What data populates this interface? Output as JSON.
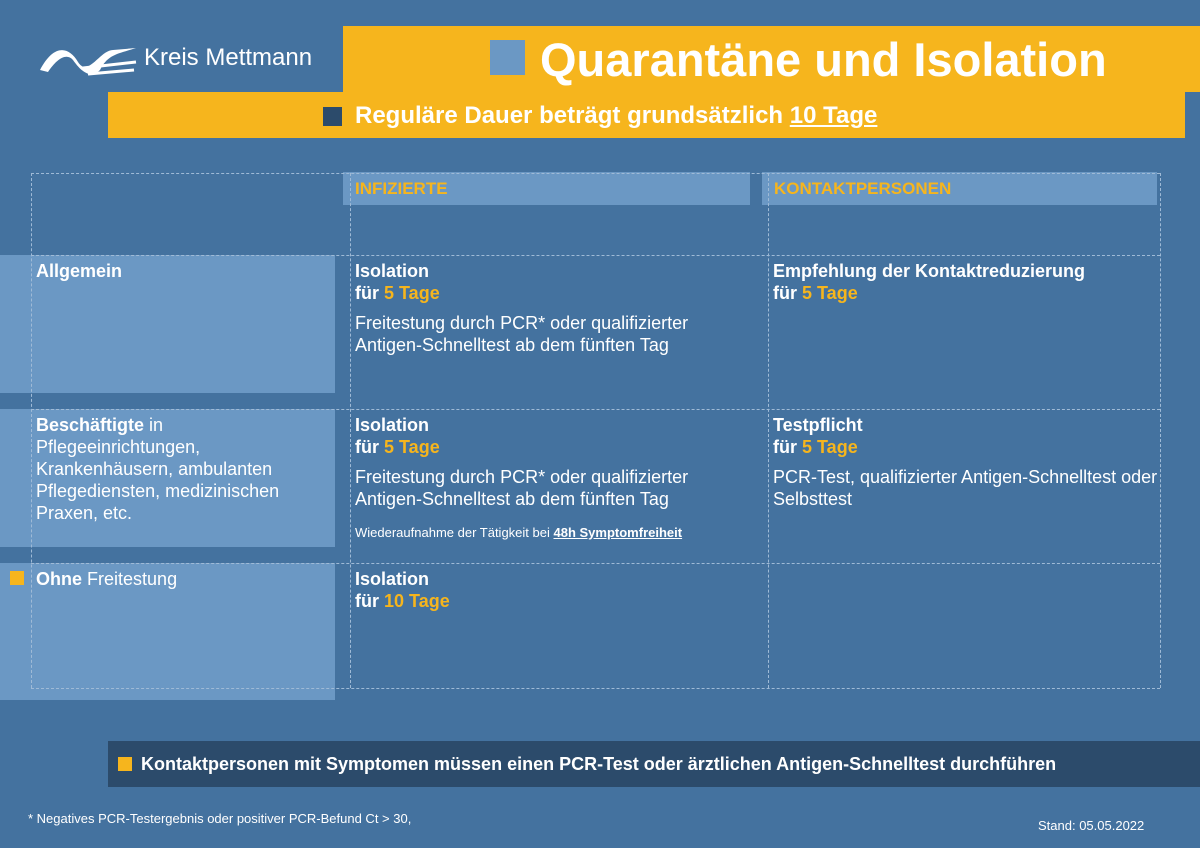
{
  "header": {
    "logo": "Kreis Mettmann",
    "title": "Quarantäne und Isolation",
    "subtitle": "Reguläre Dauer beträgt grundsätzlich",
    "subtitle_highlight": "10 Tage"
  },
  "table": {
    "columns": [
      "INFIZIERTE",
      "KONTAKTPERSONEN"
    ],
    "rows": [
      {
        "label_bold": "Allgemein",
        "infected": {
          "heading": "Isolation",
          "for": "für",
          "duration": "5 Tage",
          "text": "Freitestung durch PCR* oder qualifizierter Antigen-Schnelltest ab dem fünften Tag"
        },
        "contacts": {
          "heading": "Empfehlung der Kontaktreduzierung",
          "for": "für",
          "duration": "5 Tage"
        }
      },
      {
        "label_bold": "Beschäftigte",
        "label_rest": "in Pflegeeinrichtungen, Krankenhäusern, ambulanten Pflegediensten, medizinischen Praxen, etc.",
        "infected": {
          "heading": "Isolation",
          "for": "für",
          "duration": "5 Tage",
          "text": "Freitestung durch PCR* oder qualifizierter Antigen-Schnelltest ab dem fünften Tag",
          "extra": "Wiederaufnahme der Tätigkeit bei",
          "extra_link": "48h Symptomfreiheit"
        },
        "contacts": {
          "heading": "Testpflicht",
          "for": "für",
          "duration": "5 Tage",
          "text": "PCR-Test, qualifizierter Antigen-Schnelltest oder Selbsttest"
        }
      },
      {
        "label_bold": "Ohne",
        "label_rest": "Freitestung",
        "infected": {
          "heading": "Isolation",
          "for": "für",
          "duration": "10 Tage"
        }
      }
    ]
  },
  "note": "Kontaktpersonen mit Symptomen müssen einen PCR-Test oder ärztlichen Antigen-Schnelltest durchführen",
  "footnote": "* Negatives PCR-Testergebnis oder positiver PCR-Befund Ct > 30,",
  "date": "Stand: 05.05.2022"
}
